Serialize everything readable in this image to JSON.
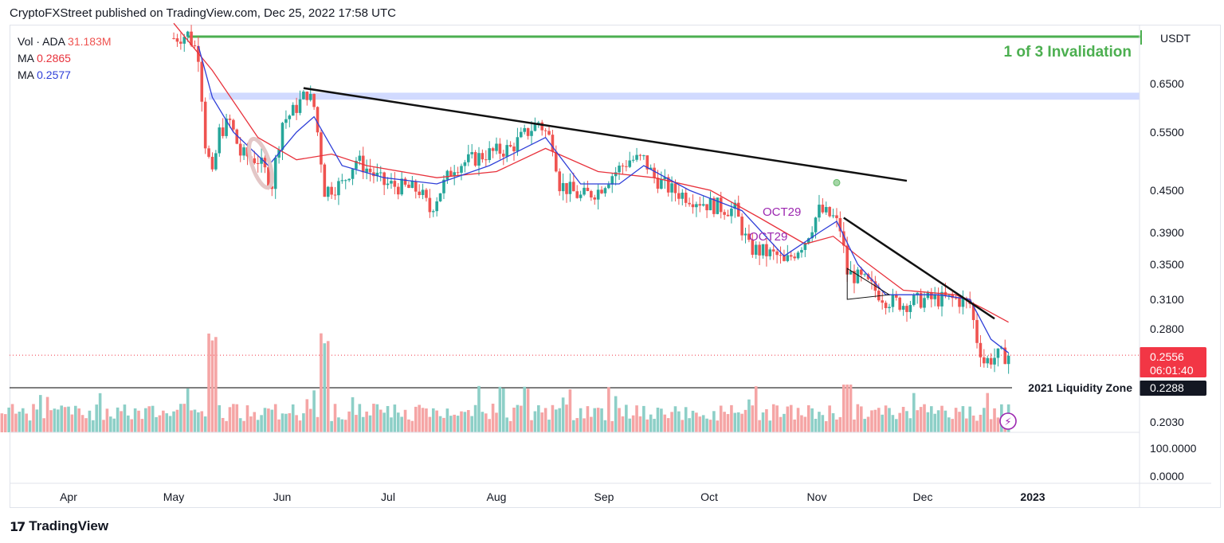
{
  "header": {
    "published_by": "CryptoFXStreet published on TradingView.com, Dec 25, 2022 17:58 UTC"
  },
  "legend": {
    "vol_label": "Vol · ADA",
    "vol_value": "31.183M",
    "ma1_label": "MA",
    "ma1_value": "0.2865",
    "ma2_label": "MA",
    "ma2_value": "0.2577"
  },
  "footer": {
    "brand": "TradingView"
  },
  "colors": {
    "up": "#26a69a",
    "down": "#ef5350",
    "vol_up": "#8dcfc7",
    "vol_down": "#f5a5a5",
    "ma_fast": "#2f3fd8",
    "ma_slow": "#e8323c",
    "invalidation": "#4caf50",
    "zone": "#c9d4ff",
    "badge": "#f23645",
    "annotation": "#9c27b0"
  },
  "chart_data": {
    "type": "candlestick",
    "symbol": "ADA",
    "quote_currency": "USDT",
    "price_axis_ticks": [
      0.65,
      0.55,
      0.45,
      0.39,
      0.35,
      0.31,
      0.28,
      0.203
    ],
    "price_axis_labels": [
      "0.6500",
      "0.5500",
      "0.4500",
      "0.3900",
      "0.3500",
      "0.3100",
      "0.2800",
      "0.2030"
    ],
    "oscillator_axis_labels": [
      "100.0000",
      "0.0000"
    ],
    "time_axis_labels": [
      "Apr",
      "May",
      "Jun",
      "Jul",
      "Aug",
      "Sep",
      "Oct",
      "Nov",
      "Dec",
      "2023"
    ],
    "last_price": "0.2556",
    "countdown": "06:01:40",
    "liquidity_zone": {
      "label": "2021 Liquidity Zone",
      "value": 0.2288,
      "value_label": "0.2288"
    },
    "invalidation": {
      "label": "1 of 3 Invalidation",
      "value": 0.735
    },
    "supply_zone": {
      "low": 0.615,
      "high": 0.63
    },
    "annotations": [
      "OCT29",
      "OCT29"
    ],
    "volume": "31.183M",
    "moving_averages": [
      {
        "name": "MA",
        "value": 0.2865
      },
      {
        "name": "MA",
        "value": 0.2577
      }
    ],
    "price_path": [
      [
        "2022-05-01",
        0.76
      ],
      [
        "2022-05-05",
        0.77
      ],
      [
        "2022-05-08",
        0.72
      ],
      [
        "2022-05-10",
        0.53
      ],
      [
        "2022-05-12",
        0.47
      ],
      [
        "2022-05-14",
        0.55
      ],
      [
        "2022-05-17",
        0.57
      ],
      [
        "2022-05-20",
        0.51
      ],
      [
        "2022-05-25",
        0.5
      ],
      [
        "2022-05-29",
        0.46
      ],
      [
        "2022-06-01",
        0.57
      ],
      [
        "2022-06-04",
        0.59
      ],
      [
        "2022-06-08",
        0.63
      ],
      [
        "2022-06-10",
        0.6
      ],
      [
        "2022-06-13",
        0.45
      ],
      [
        "2022-06-18",
        0.46
      ],
      [
        "2022-06-22",
        0.5
      ],
      [
        "2022-06-30",
        0.46
      ],
      [
        "2022-07-10",
        0.45
      ],
      [
        "2022-07-13",
        0.42
      ],
      [
        "2022-07-20",
        0.49
      ],
      [
        "2022-07-25",
        0.5
      ],
      [
        "2022-07-29",
        0.51
      ],
      [
        "2022-08-05",
        0.52
      ],
      [
        "2022-08-13",
        0.57
      ],
      [
        "2022-08-17",
        0.53
      ],
      [
        "2022-08-19",
        0.46
      ],
      [
        "2022-08-25",
        0.44
      ],
      [
        "2022-08-30",
        0.45
      ],
      [
        "2022-09-02",
        0.47
      ],
      [
        "2022-09-08",
        0.5
      ],
      [
        "2022-09-12",
        0.5
      ],
      [
        "2022-09-15",
        0.47
      ],
      [
        "2022-09-20",
        0.45
      ],
      [
        "2022-09-30",
        0.43
      ],
      [
        "2022-10-08",
        0.42
      ],
      [
        "2022-10-12",
        0.37
      ],
      [
        "2022-10-20",
        0.36
      ],
      [
        "2022-10-22",
        0.35
      ],
      [
        "2022-10-28",
        0.38
      ],
      [
        "2022-11-01",
        0.42
      ],
      [
        "2022-11-05",
        0.41
      ],
      [
        "2022-11-07",
        0.395
      ],
      [
        "2022-11-09",
        0.34
      ],
      [
        "2022-11-14",
        0.33
      ],
      [
        "2022-11-20",
        0.31
      ],
      [
        "2022-11-25",
        0.305
      ],
      [
        "2022-12-01",
        0.31
      ],
      [
        "2022-12-10",
        0.31
      ],
      [
        "2022-12-14",
        0.305
      ],
      [
        "2022-12-16",
        0.27
      ],
      [
        "2022-12-18",
        0.25
      ],
      [
        "2022-12-22",
        0.255
      ],
      [
        "2022-12-25",
        0.2556
      ]
    ],
    "ma_fast_path": [
      [
        "2022-05-08",
        0.74
      ],
      [
        "2022-05-12",
        0.62
      ],
      [
        "2022-05-18",
        0.55
      ],
      [
        "2022-05-28",
        0.49
      ],
      [
        "2022-06-05",
        0.55
      ],
      [
        "2022-06-10",
        0.58
      ],
      [
        "2022-06-18",
        0.49
      ],
      [
        "2022-06-30",
        0.47
      ],
      [
        "2022-07-15",
        0.46
      ],
      [
        "2022-07-30",
        0.49
      ],
      [
        "2022-08-15",
        0.54
      ],
      [
        "2022-08-25",
        0.46
      ],
      [
        "2022-09-05",
        0.46
      ],
      [
        "2022-09-12",
        0.49
      ],
      [
        "2022-09-25",
        0.45
      ],
      [
        "2022-10-10",
        0.42
      ],
      [
        "2022-10-22",
        0.36
      ],
      [
        "2022-11-01",
        0.39
      ],
      [
        "2022-11-06",
        0.405
      ],
      [
        "2022-11-12",
        0.35
      ],
      [
        "2022-11-20",
        0.315
      ],
      [
        "2022-12-05",
        0.315
      ],
      [
        "2022-12-14",
        0.31
      ],
      [
        "2022-12-20",
        0.27
      ],
      [
        "2022-12-25",
        0.2577
      ]
    ],
    "ma_slow_path": [
      [
        "2022-05-01",
        0.8
      ],
      [
        "2022-05-12",
        0.68
      ],
      [
        "2022-05-25",
        0.54
      ],
      [
        "2022-06-05",
        0.5
      ],
      [
        "2022-06-15",
        0.51
      ],
      [
        "2022-06-25",
        0.49
      ],
      [
        "2022-07-15",
        0.47
      ],
      [
        "2022-08-01",
        0.48
      ],
      [
        "2022-08-15",
        0.52
      ],
      [
        "2022-08-30",
        0.48
      ],
      [
        "2022-09-15",
        0.47
      ],
      [
        "2022-10-01",
        0.45
      ],
      [
        "2022-10-15",
        0.41
      ],
      [
        "2022-10-28",
        0.375
      ],
      [
        "2022-11-05",
        0.385
      ],
      [
        "2022-11-12",
        0.36
      ],
      [
        "2022-11-25",
        0.32
      ],
      [
        "2022-12-10",
        0.315
      ],
      [
        "2022-12-18",
        0.3
      ],
      [
        "2022-12-25",
        0.2865
      ]
    ],
    "trendlines": [
      {
        "name": "macro-downtrend",
        "from": [
          "2022-06-07",
          0.64
        ],
        "to": [
          "2022-11-26",
          0.465
        ]
      },
      {
        "name": "short-downtrend",
        "from": [
          "2022-11-08",
          0.41
        ],
        "to": [
          "2022-12-21",
          0.29
        ]
      }
    ],
    "triangle": [
      [
        "2022-11-09",
        0.31
      ],
      [
        "2022-11-21",
        0.315
      ],
      [
        "2022-11-09",
        0.345
      ]
    ],
    "events": [
      {
        "date": "2022-11-06",
        "value": 0.462
      }
    ]
  }
}
